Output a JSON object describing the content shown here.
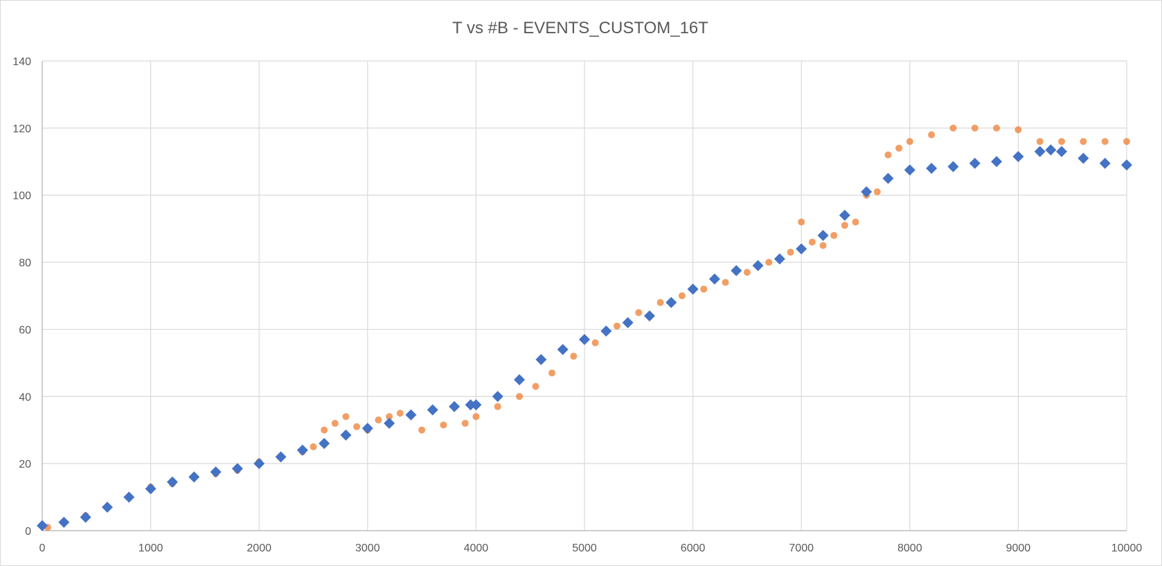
{
  "chart_data": {
    "type": "scatter",
    "title": "T vs #B - EVENTS_CUSTOM_16T",
    "xlabel": "",
    "ylabel": "",
    "xlim": [
      0,
      10000
    ],
    "ylim": [
      0,
      140
    ],
    "x_ticks": [
      0,
      1000,
      2000,
      3000,
      4000,
      5000,
      6000,
      7000,
      8000,
      9000,
      10000
    ],
    "y_ticks": [
      0,
      20,
      40,
      60,
      80,
      100,
      120,
      140
    ],
    "x_tick_labels": [
      "0",
      "1000",
      "2000",
      "3000",
      "4000",
      "5000",
      "6000",
      "7000",
      "8000",
      "9000",
      "10000"
    ],
    "y_tick_labels": [
      "0",
      "20",
      "40",
      "60",
      "80",
      "100",
      "120",
      "140"
    ],
    "grid": true,
    "legend": "none",
    "colors": {
      "blue": "#4472c4",
      "orange": "#ed7d31",
      "grid": "#d9d9d9",
      "text": "#595959"
    },
    "series": [
      {
        "color": "#4472c4",
        "marker": "diamond",
        "x": [
          0,
          200,
          400,
          600,
          800,
          1000,
          1200,
          1400,
          1600,
          1800,
          2000,
          2200,
          2400,
          2600,
          2800,
          3000,
          3200,
          3400,
          3600,
          3800,
          3950,
          4000,
          4200,
          4400,
          4600,
          4800,
          5000,
          5200,
          5400,
          5600,
          5800,
          6000,
          6200,
          6400,
          6600,
          6800,
          7000,
          7200,
          7400,
          7600,
          7800,
          8000,
          8200,
          8400,
          8600,
          8800,
          9000,
          9200,
          9300,
          9400,
          9600,
          9800,
          10000
        ],
        "y": [
          1.5,
          2.5,
          4,
          7,
          10,
          12.5,
          14.5,
          16,
          17.5,
          18.5,
          20,
          22,
          24,
          26,
          28.5,
          30.5,
          32,
          34.5,
          36,
          37,
          37.5,
          37.5,
          40,
          45,
          51,
          54,
          57,
          59.5,
          62,
          64,
          68,
          72,
          75,
          77.5,
          79,
          81,
          84,
          88,
          94,
          101,
          105,
          107.5,
          108,
          108.5,
          109.5,
          110,
          111.5,
          113,
          113.5,
          113,
          111,
          109.5,
          109
        ]
      },
      {
        "color": "#ed7d31",
        "marker": "circle",
        "x": [
          50,
          200,
          400,
          600,
          800,
          1000,
          1200,
          1400,
          1600,
          1800,
          2000,
          2200,
          2400,
          2500,
          2600,
          2700,
          2800,
          2900,
          3000,
          3100,
          3200,
          3300,
          3500,
          3700,
          3900,
          4000,
          4200,
          4400,
          4550,
          4700,
          4900,
          5100,
          5300,
          5500,
          5700,
          5900,
          6100,
          6300,
          6500,
          6700,
          6900,
          7000,
          7100,
          7200,
          7300,
          7400,
          7500,
          7600,
          7700,
          7800,
          7900,
          8000,
          8200,
          8400,
          8600,
          8800,
          9000,
          9200,
          9400,
          9600,
          9800,
          10000
        ],
        "y": [
          1,
          2.5,
          4.5,
          7,
          10,
          13,
          14,
          16,
          17,
          18,
          20.5,
          22,
          23.5,
          25,
          30,
          32,
          34,
          31,
          30,
          33,
          34,
          35,
          30,
          31.5,
          32,
          34,
          37,
          40,
          43,
          47,
          52,
          56,
          61,
          65,
          68,
          70,
          72,
          74,
          77,
          80,
          83,
          92,
          86,
          85,
          88,
          91,
          92,
          100,
          101,
          112,
          114,
          116,
          118,
          120,
          120,
          120,
          119.5,
          116,
          116,
          116,
          116,
          116
        ]
      }
    ]
  }
}
